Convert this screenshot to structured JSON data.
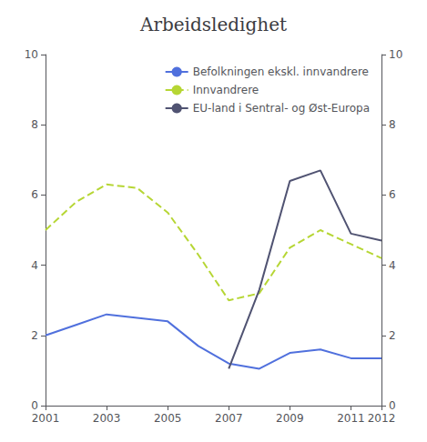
{
  "chart_data": {
    "type": "line",
    "title": "Arbeidsledighet",
    "x": [
      2001,
      2002,
      2003,
      2004,
      2005,
      2006,
      2007,
      2008,
      2009,
      2010,
      2011,
      2012
    ],
    "series": [
      {
        "name": "Befolkningen ekskl. innvandrere",
        "line_style": "solid",
        "values": [
          2.0,
          2.3,
          2.6,
          2.5,
          2.4,
          1.7,
          1.2,
          1.05,
          1.5,
          1.6,
          1.35,
          1.35
        ]
      },
      {
        "name": "Innvandrere",
        "line_style": "dashed",
        "values": [
          5.0,
          5.8,
          6.3,
          6.2,
          5.5,
          4.3,
          3.0,
          3.2,
          4.5,
          5.0,
          4.6,
          4.2
        ]
      },
      {
        "name": "EU-land i Sentral- og Øst-Europa",
        "line_style": "solid",
        "values": [
          null,
          null,
          null,
          null,
          null,
          null,
          1.05,
          3.3,
          6.4,
          6.7,
          4.9,
          4.7
        ]
      }
    ],
    "xlim": [
      2001,
      2012
    ],
    "xticks": [
      2001,
      2003,
      2005,
      2007,
      2009,
      2011,
      2012
    ],
    "ylim": [
      0,
      10
    ],
    "yticks": [
      0,
      2,
      4,
      6,
      8,
      10
    ],
    "y2lim": [
      0,
      10
    ],
    "y2ticks": [
      0,
      2,
      4,
      6,
      8,
      10
    ],
    "grid": false,
    "legend": "upper right"
  }
}
